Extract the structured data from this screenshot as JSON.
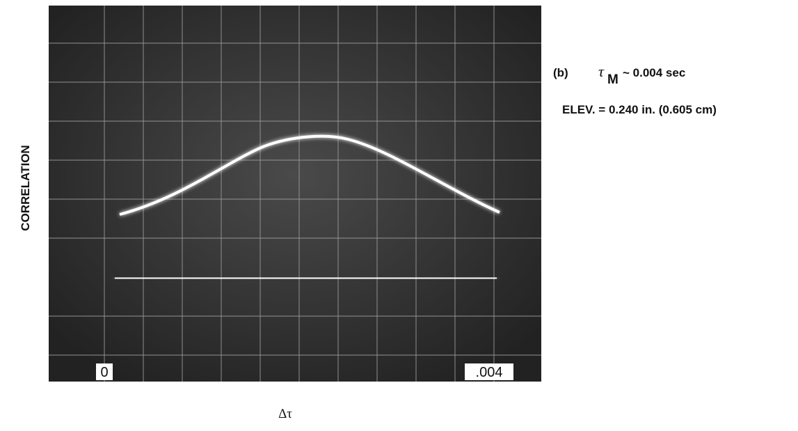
{
  "figure": {
    "panel": "(b)",
    "tau_symbol": "τ",
    "tau_subscript": "M",
    "tau_relation": "~ 0.004 sec",
    "elevation": "ELEV. = 0.240 in. (0.605 cm)",
    "y_label": "CORRELATION",
    "x_label": "Δτ",
    "x_start_label": "0",
    "x_end_label": ".004"
  }
}
